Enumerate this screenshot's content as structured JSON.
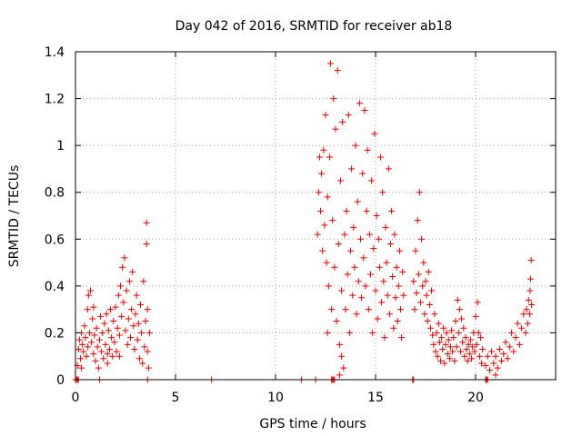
{
  "chart_data": {
    "type": "scatter",
    "title": "Day 042 of 2016, SRMTID for receiver ab18",
    "xlabel": "GPS time / hours",
    "ylabel": "SRMTID / TECUs",
    "xlim": [
      0,
      24
    ],
    "ylim": [
      0,
      1.4
    ],
    "xticks": [
      0,
      5,
      10,
      15,
      20
    ],
    "xtick_labels": [
      "0",
      "5",
      "10",
      "15",
      "20"
    ],
    "yticks": [
      0,
      0.2,
      0.4,
      0.6,
      0.8,
      1.0,
      1.2,
      1.4
    ],
    "ytick_labels": [
      "0",
      "0.2",
      "0.4",
      "0.6",
      "0.8",
      "1",
      "1.2",
      "1.4"
    ],
    "grid": true,
    "marker": "+",
    "color": "#e00000",
    "series": [
      {
        "name": "SRMTID",
        "points": [
          [
            0.1,
            0.06
          ],
          [
            0.15,
            0.13
          ],
          [
            0.2,
            0.17
          ],
          [
            0.25,
            0.09
          ],
          [
            0.3,
            0.2
          ],
          [
            0.35,
            0.15
          ],
          [
            0.4,
            0.12
          ],
          [
            0.45,
            0.23
          ],
          [
            0.5,
            0.18
          ],
          [
            0.55,
            0.1
          ],
          [
            0.6,
            0.3
          ],
          [
            0.62,
            0.14
          ],
          [
            0.65,
            0.36
          ],
          [
            0.7,
            0.2
          ],
          [
            0.75,
            0.38
          ],
          [
            0.8,
            0.16
          ],
          [
            0.85,
            0.26
          ],
          [
            0.9,
            0.11
          ],
          [
            0.95,
            0.19
          ],
          [
            1.0,
            0.08
          ],
          [
            1.05,
            0.22
          ],
          [
            1.1,
            0.14
          ],
          [
            1.15,
            0.05
          ],
          [
            1.2,
            0.17
          ],
          [
            1.25,
            0.27
          ],
          [
            1.3,
            0.12
          ],
          [
            1.35,
            0.2
          ],
          [
            1.4,
            0.09
          ],
          [
            1.45,
            0.24
          ],
          [
            1.5,
            0.15
          ],
          [
            1.55,
            0.28
          ],
          [
            1.6,
            0.11
          ],
          [
            1.65,
            0.21
          ],
          [
            1.7,
            0.13
          ],
          [
            1.75,
            0.3
          ],
          [
            1.8,
            0.18
          ],
          [
            1.85,
            0.1
          ],
          [
            1.9,
            0.25
          ],
          [
            1.95,
            0.16
          ],
          [
            2.0,
            0.31
          ],
          [
            2.05,
            0.12
          ],
          [
            2.1,
            0.22
          ],
          [
            2.15,
            0.36
          ],
          [
            2.2,
            0.19
          ],
          [
            2.25,
            0.4
          ],
          [
            2.3,
            0.27
          ],
          [
            2.35,
            0.48
          ],
          [
            2.4,
            0.33
          ],
          [
            2.45,
            0.52
          ],
          [
            2.5,
            0.21
          ],
          [
            2.55,
            0.38
          ],
          [
            2.6,
            0.15
          ],
          [
            2.65,
            0.26
          ],
          [
            2.7,
            0.42
          ],
          [
            2.75,
            0.18
          ],
          [
            2.8,
            0.3
          ],
          [
            2.85,
            0.46
          ],
          [
            2.9,
            0.23
          ],
          [
            2.95,
            0.13
          ],
          [
            3.0,
            0.28
          ],
          [
            3.05,
            0.36
          ],
          [
            3.1,
            0.17
          ],
          [
            3.15,
            0.24
          ],
          [
            3.2,
            0.09
          ],
          [
            3.25,
            0.32
          ],
          [
            3.3,
            0.2
          ],
          [
            3.35,
            0.07
          ],
          [
            3.4,
            0.42
          ],
          [
            3.45,
            0.14
          ],
          [
            3.5,
            0.25
          ],
          [
            3.55,
            0.58
          ],
          [
            3.55,
            0.67
          ],
          [
            3.6,
            0.12
          ],
          [
            3.6,
            0.3
          ],
          [
            3.65,
            0.05
          ],
          [
            3.7,
            0.2
          ],
          [
            0.3,
            0.05
          ],
          [
            0.9,
            0.31
          ],
          [
            1.6,
            0.07
          ],
          [
            2.2,
            0.1
          ],
          [
            12.1,
            0.62
          ],
          [
            12.15,
            0.8
          ],
          [
            12.2,
            0.95
          ],
          [
            12.25,
            0.72
          ],
          [
            12.3,
            0.88
          ],
          [
            12.35,
            0.55
          ],
          [
            12.4,
            0.98
          ],
          [
            12.45,
            0.66
          ],
          [
            12.5,
            1.13
          ],
          [
            12.55,
            0.5
          ],
          [
            12.6,
            0.78
          ],
          [
            12.65,
            0.4
          ],
          [
            12.7,
            0.95
          ],
          [
            12.75,
            1.35
          ],
          [
            12.8,
            0.3
          ],
          [
            12.85,
            0.68
          ],
          [
            12.9,
            1.2
          ],
          [
            12.95,
            0.48
          ],
          [
            13.0,
            1.07
          ],
          [
            13.05,
            0.25
          ],
          [
            13.1,
            1.32
          ],
          [
            13.15,
            0.58
          ],
          [
            13.2,
            0.15
          ],
          [
            13.25,
            0.85
          ],
          [
            13.3,
            0.38
          ],
          [
            13.35,
            1.1
          ],
          [
            13.4,
            0.05
          ],
          [
            13.45,
            0.62
          ],
          [
            13.5,
            0.3
          ],
          [
            13.55,
            0.72
          ],
          [
            13.6,
            0.45
          ],
          [
            13.65,
            1.13
          ],
          [
            13.7,
            0.2
          ],
          [
            13.75,
            0.55
          ],
          [
            13.8,
            0.9
          ],
          [
            13.85,
            0.36
          ],
          [
            13.9,
            0.65
          ],
          [
            13.95,
            0.48
          ],
          [
            14.0,
            1.0
          ],
          [
            14.05,
            0.28
          ],
          [
            14.1,
            0.76
          ],
          [
            14.15,
            0.42
          ],
          [
            14.2,
            1.18
          ],
          [
            14.25,
            0.6
          ],
          [
            14.3,
            0.35
          ],
          [
            14.35,
            0.88
          ],
          [
            14.4,
            0.52
          ],
          [
            14.45,
            1.15
          ],
          [
            14.5,
            0.4
          ],
          [
            14.55,
            0.72
          ],
          [
            14.6,
            0.98
          ],
          [
            14.65,
            0.3
          ],
          [
            14.7,
            0.62
          ],
          [
            14.75,
            0.45
          ],
          [
            14.8,
            0.85
          ],
          [
            14.85,
            0.2
          ],
          [
            14.9,
            0.56
          ],
          [
            14.95,
            1.05
          ],
          [
            15.0,
            0.38
          ],
          [
            15.05,
            0.7
          ],
          [
            15.1,
            0.26
          ],
          [
            15.15,
            0.6
          ],
          [
            15.2,
            0.48
          ],
          [
            15.25,
            0.95
          ],
          [
            15.3,
            0.33
          ],
          [
            15.35,
            0.8
          ],
          [
            15.4,
            0.42
          ],
          [
            15.45,
            0.18
          ],
          [
            15.5,
            0.65
          ],
          [
            15.55,
            0.5
          ],
          [
            15.6,
            0.36
          ],
          [
            15.65,
            0.9
          ],
          [
            15.7,
            0.28
          ],
          [
            15.75,
            0.58
          ],
          [
            15.8,
            0.72
          ],
          [
            15.85,
            0.44
          ],
          [
            15.9,
            0.22
          ],
          [
            15.95,
            0.62
          ],
          [
            16.0,
            0.35
          ],
          [
            16.05,
            0.48
          ],
          [
            16.1,
            0.25
          ],
          [
            16.15,
            0.4
          ],
          [
            16.2,
            0.55
          ],
          [
            16.25,
            0.3
          ],
          [
            16.3,
            0.18
          ],
          [
            16.35,
            0.46
          ],
          [
            16.4,
            0.36
          ],
          [
            13.2,
            0.02
          ],
          [
            13.3,
            0.1
          ],
          [
            12.6,
            0.2
          ],
          [
            16.9,
            0.42
          ],
          [
            16.95,
            0.3
          ],
          [
            17.0,
            0.55
          ],
          [
            17.05,
            0.37
          ],
          [
            17.1,
            0.68
          ],
          [
            17.15,
            0.45
          ],
          [
            17.2,
            0.8
          ],
          [
            17.25,
            0.33
          ],
          [
            17.3,
            0.6
          ],
          [
            17.35,
            0.4
          ],
          [
            17.4,
            0.5
          ],
          [
            17.45,
            0.28
          ],
          [
            17.5,
            0.42
          ],
          [
            17.55,
            0.36
          ],
          [
            17.6,
            0.25
          ],
          [
            17.65,
            0.46
          ],
          [
            17.7,
            0.32
          ],
          [
            17.75,
            0.22
          ],
          [
            17.8,
            0.38
          ],
          [
            17.85,
            0.19
          ],
          [
            17.9,
            0.15
          ],
          [
            17.95,
            0.28
          ],
          [
            18.0,
            0.12
          ],
          [
            18.05,
            0.2
          ],
          [
            18.1,
            0.1
          ],
          [
            18.15,
            0.24
          ],
          [
            18.2,
            0.16
          ],
          [
            18.25,
            0.08
          ],
          [
            18.3,
            0.18
          ],
          [
            18.35,
            0.13
          ],
          [
            18.4,
            0.22
          ],
          [
            18.45,
            0.07
          ],
          [
            18.5,
            0.15
          ],
          [
            18.55,
            0.2
          ],
          [
            18.6,
            0.11
          ],
          [
            18.65,
            0.17
          ],
          [
            18.7,
            0.09
          ],
          [
            18.75,
            0.14
          ],
          [
            18.8,
            0.21
          ],
          [
            18.85,
            0.12
          ],
          [
            18.9,
            0.18
          ],
          [
            18.95,
            0.08
          ],
          [
            19.0,
            0.25
          ],
          [
            19.05,
            0.14
          ],
          [
            19.1,
            0.34
          ],
          [
            19.15,
            0.2
          ],
          [
            19.2,
            0.3
          ],
          [
            19.25,
            0.12
          ],
          [
            19.3,
            0.26
          ],
          [
            19.35,
            0.16
          ],
          [
            19.4,
            0.22
          ],
          [
            19.45,
            0.1
          ],
          [
            19.5,
            0.18
          ],
          [
            19.55,
            0.13
          ],
          [
            19.6,
            0.08
          ],
          [
            19.65,
            0.15
          ],
          [
            19.7,
            0.11
          ],
          [
            19.75,
            0.17
          ],
          [
            19.8,
            0.09
          ],
          [
            19.85,
            0.14
          ],
          [
            19.9,
            0.2
          ],
          [
            19.95,
            0.12
          ],
          [
            20.0,
            0.27
          ],
          [
            20.05,
            0.15
          ],
          [
            20.1,
            0.33
          ],
          [
            20.15,
            0.2
          ],
          [
            20.2,
            0.1
          ],
          [
            20.25,
            0.18
          ],
          [
            20.3,
            0.07
          ],
          [
            20.35,
            0.13
          ],
          [
            20.5,
            0.06
          ],
          [
            20.6,
            0.1
          ],
          [
            20.7,
            0.04
          ],
          [
            20.8,
            0.12
          ],
          [
            20.9,
            0.07
          ],
          [
            21.0,
            0.1
          ],
          [
            21.1,
            0.05
          ],
          [
            21.2,
            0.13
          ],
          [
            21.3,
            0.08
          ],
          [
            21.4,
            0.11
          ],
          [
            21.5,
            0.16
          ],
          [
            21.6,
            0.09
          ],
          [
            21.7,
            0.14
          ],
          [
            21.8,
            0.2
          ],
          [
            21.9,
            0.12
          ],
          [
            22.0,
            0.18
          ],
          [
            22.1,
            0.24
          ],
          [
            22.2,
            0.15
          ],
          [
            22.3,
            0.22
          ],
          [
            22.4,
            0.28
          ],
          [
            22.5,
            0.2
          ],
          [
            22.55,
            0.3
          ],
          [
            22.6,
            0.24
          ],
          [
            22.65,
            0.34
          ],
          [
            22.7,
            0.28
          ],
          [
            22.72,
            0.38
          ],
          [
            22.75,
            0.43
          ],
          [
            22.78,
            0.51
          ],
          [
            22.8,
            0.32
          ],
          [
            21.0,
            0.02
          ]
        ]
      },
      {
        "name": "SRMTID (zero level)",
        "points": [
          [
            0.0,
            0.0
          ],
          [
            0.05,
            0.0
          ],
          [
            0.1,
            0.0
          ],
          [
            0.15,
            0.0
          ],
          [
            1.2,
            0.0
          ],
          [
            3.6,
            0.0
          ],
          [
            6.8,
            0.0
          ],
          [
            11.3,
            0.0
          ],
          [
            12.0,
            0.0
          ],
          [
            12.8,
            0.0
          ],
          [
            12.85,
            0.0
          ],
          [
            12.9,
            0.0
          ],
          [
            12.95,
            0.0
          ],
          [
            16.85,
            0.0
          ],
          [
            16.9,
            0.0
          ],
          [
            20.5,
            0.0
          ],
          [
            20.55,
            0.0
          ],
          [
            20.6,
            0.0
          ]
        ]
      }
    ]
  }
}
